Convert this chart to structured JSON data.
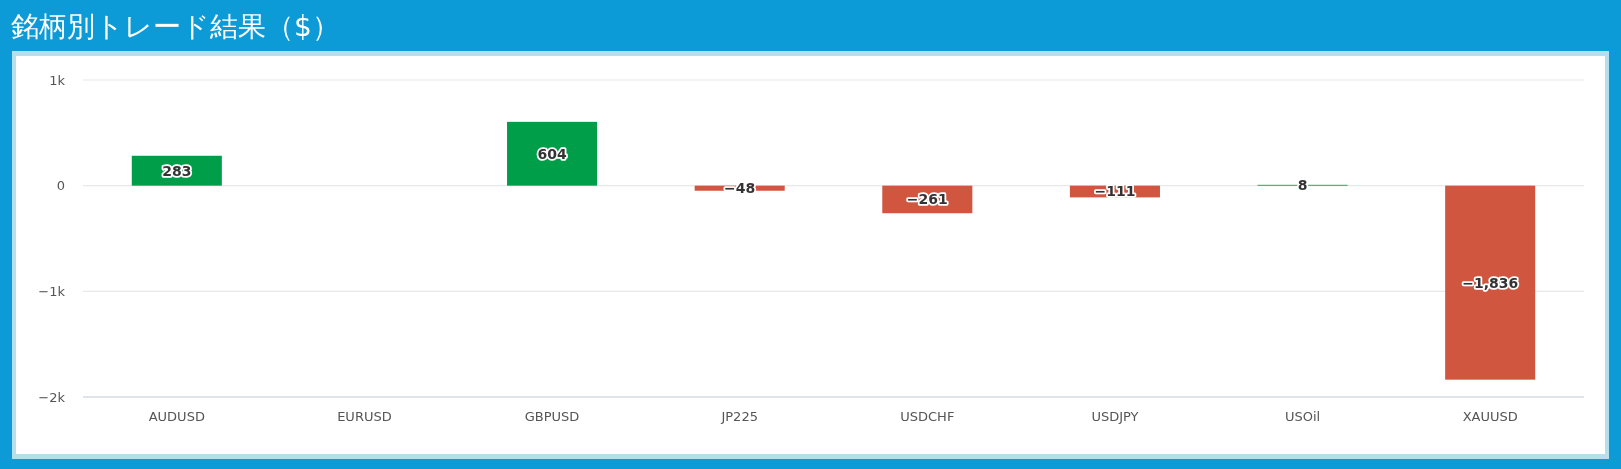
{
  "chart_data": {
    "type": "bar",
    "title": "銘柄別トレード結果（$）",
    "categories": [
      "AUDUSD",
      "EURUSD",
      "GBPUSD",
      "JP225",
      "USDCHF",
      "USDJPY",
      "USOil",
      "XAUUSD"
    ],
    "values": [
      283,
      null,
      604,
      -48,
      -261,
      -111,
      8,
      -1836
    ],
    "colors": [
      "#009e49",
      null,
      "#009e49",
      "#d0563f",
      "#d0563f",
      "#d0563f",
      "#009e49",
      "#d0563f"
    ],
    "value_labels": [
      "283",
      null,
      "604",
      "−48",
      "−261",
      "−111",
      "8",
      "−1,836"
    ],
    "ylim": [
      -2000,
      1000
    ],
    "yticks": [
      {
        "value": -2000,
        "label": "−2k"
      },
      {
        "value": -1000,
        "label": "−1k"
      },
      0,
      {
        "value": 1000,
        "label": "1k"
      }
    ],
    "grid": "y"
  }
}
